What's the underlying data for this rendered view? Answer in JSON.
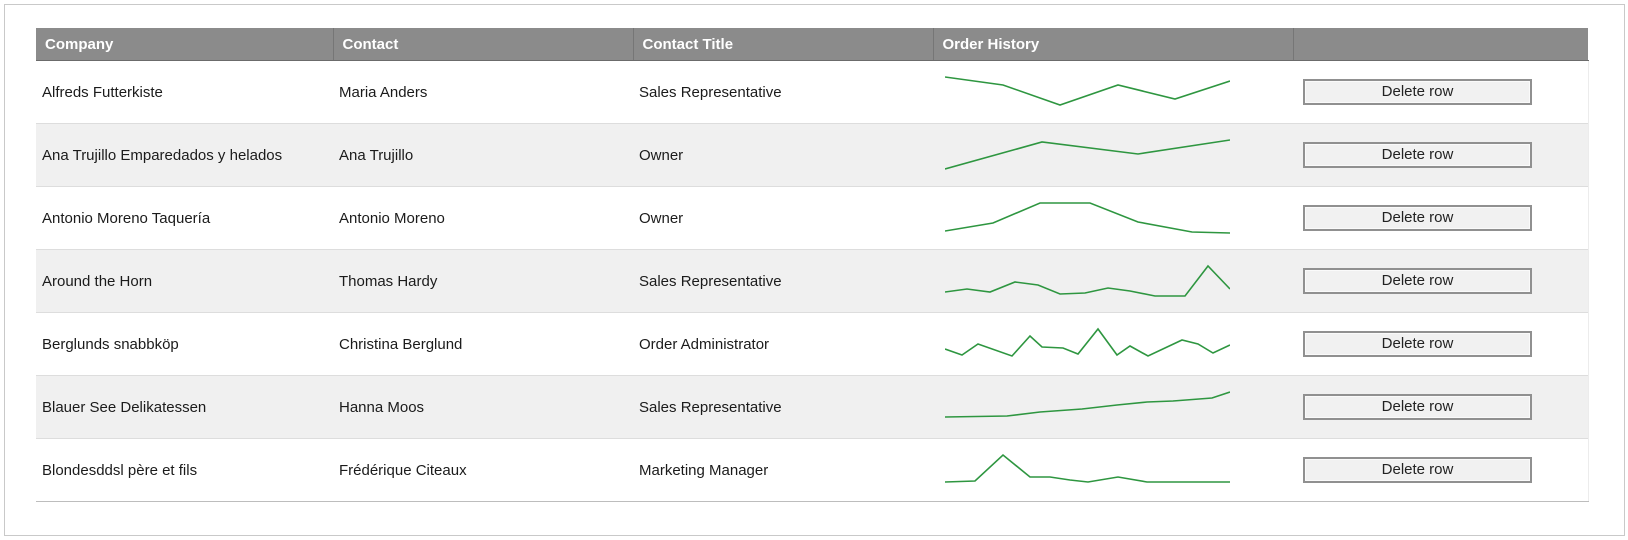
{
  "table": {
    "headers": [
      "Company",
      "Contact",
      "Contact Title",
      "Order History",
      ""
    ],
    "rows": [
      {
        "company": "Alfreds Futterkiste",
        "contact": "Maria Anders",
        "contact_title": "Sales Representative",
        "sparkline": [
          [
            0,
            3
          ],
          [
            58,
            11
          ],
          [
            115,
            31
          ],
          [
            173,
            11
          ],
          [
            230,
            25
          ],
          [
            285,
            7
          ]
        ]
      },
      {
        "company": "Ana Trujillo Emparedados y helados",
        "contact": "Ana Trujillo",
        "contact_title": "Owner",
        "sparkline": [
          [
            0,
            32
          ],
          [
            97,
            5
          ],
          [
            193,
            17
          ],
          [
            285,
            3
          ]
        ]
      },
      {
        "company": "Antonio Moreno Taquería",
        "contact": "Antonio Moreno",
        "contact_title": "Owner",
        "sparkline": [
          [
            0,
            31
          ],
          [
            48,
            23
          ],
          [
            95,
            3
          ],
          [
            145,
            3
          ],
          [
            193,
            22
          ],
          [
            247,
            32
          ],
          [
            285,
            33
          ]
        ]
      },
      {
        "company": "Around the Horn",
        "contact": "Thomas Hardy",
        "contact_title": "Sales Representative",
        "sparkline": [
          [
            0,
            29
          ],
          [
            22,
            26
          ],
          [
            45,
            29
          ],
          [
            70,
            19
          ],
          [
            93,
            22
          ],
          [
            115,
            31
          ],
          [
            140,
            30
          ],
          [
            163,
            25
          ],
          [
            185,
            28
          ],
          [
            210,
            33
          ],
          [
            240,
            33
          ],
          [
            263,
            3
          ],
          [
            285,
            26
          ]
        ]
      },
      {
        "company": "Berglunds snabbköp",
        "contact": "Christina Berglund",
        "contact_title": "Order Administrator",
        "sparkline": [
          [
            0,
            23
          ],
          [
            17,
            29
          ],
          [
            33,
            18
          ],
          [
            67,
            30
          ],
          [
            85,
            10
          ],
          [
            97,
            21
          ],
          [
            118,
            22
          ],
          [
            133,
            28
          ],
          [
            153,
            3
          ],
          [
            172,
            29
          ],
          [
            185,
            20
          ],
          [
            203,
            30
          ],
          [
            237,
            14
          ],
          [
            253,
            18
          ],
          [
            268,
            27
          ],
          [
            285,
            19
          ]
        ]
      },
      {
        "company": "Blauer See Delikatessen",
        "contact": "Hanna Moos",
        "contact_title": "Sales Representative",
        "sparkline": [
          [
            0,
            28
          ],
          [
            62,
            27
          ],
          [
            95,
            23
          ],
          [
            137,
            20
          ],
          [
            172,
            16
          ],
          [
            202,
            13
          ],
          [
            228,
            12
          ],
          [
            267,
            9
          ],
          [
            285,
            3
          ]
        ]
      },
      {
        "company": "Blondesddsl père et fils",
        "contact": "Frédérique Citeaux",
        "contact_title": "Marketing Manager",
        "sparkline": [
          [
            0,
            30
          ],
          [
            30,
            29
          ],
          [
            58,
            3
          ],
          [
            85,
            25
          ],
          [
            105,
            25
          ],
          [
            125,
            28
          ],
          [
            143,
            30
          ],
          [
            173,
            25
          ],
          [
            202,
            30
          ],
          [
            285,
            30
          ]
        ]
      }
    ]
  },
  "actions": {
    "delete_label": "Delete row"
  },
  "colors": {
    "sparkline": "#2e9640",
    "header_bg": "#8b8b8b",
    "stripe_bg": "#f0f0f0"
  }
}
